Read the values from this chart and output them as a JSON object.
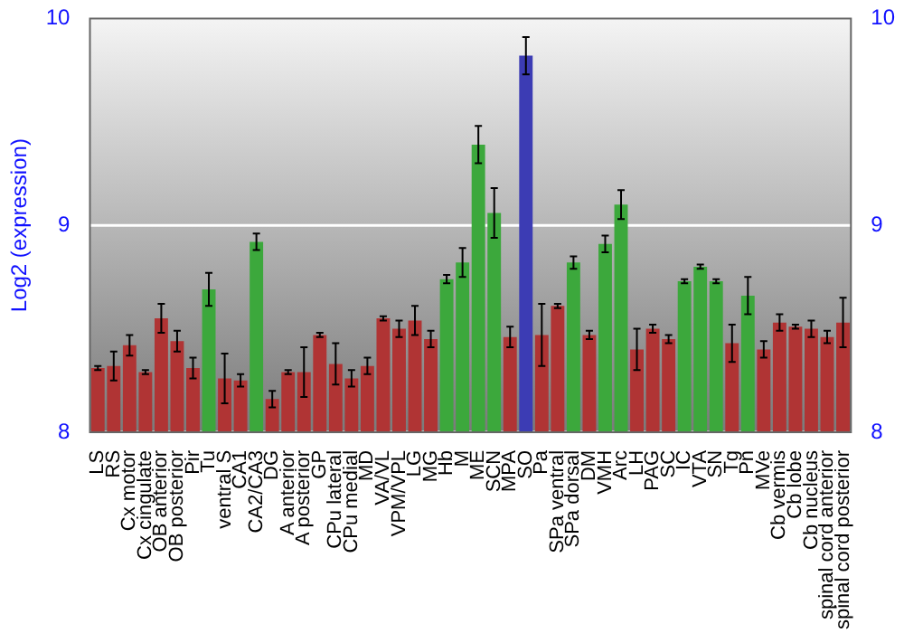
{
  "chart_data": {
    "type": "bar",
    "ylabel": "Log2 (expression)",
    "categories": [
      "LS",
      "RS",
      "Cx motor",
      "Cx cingulate",
      "OB anterior",
      "OB posterior",
      "Pir",
      "Tu",
      "ventral S",
      "CA1",
      "CA2/CA3",
      "DG",
      "A anterior",
      "A posterior",
      "GP",
      "CPu lateral",
      "CPu medial",
      "MD",
      "VA/VL",
      "VPM/VPL",
      "LG",
      "MG",
      "Hb",
      "M",
      "ME",
      "SCN",
      "MPA",
      "SO",
      "Pa",
      "SPa ventral",
      "SPa dorsal",
      "DM",
      "VMH",
      "Arc",
      "LH",
      "PAG",
      "SC",
      "IC",
      "VTA",
      "SN",
      "Tg",
      "Pn",
      "MVe",
      "Cb vermis",
      "Cb lobe",
      "Cb nucleus",
      "spinal cord anterior",
      "spinal cord posterior"
    ],
    "values": [
      8.31,
      8.32,
      8.42,
      8.29,
      8.55,
      8.44,
      8.31,
      8.69,
      8.26,
      8.25,
      8.92,
      8.16,
      8.29,
      8.29,
      8.47,
      8.33,
      8.26,
      8.32,
      8.55,
      8.5,
      8.54,
      8.45,
      8.74,
      8.82,
      9.39,
      9.06,
      8.46,
      9.82,
      8.47,
      8.61,
      8.82,
      8.47,
      8.91,
      9.1,
      8.4,
      8.5,
      8.45,
      8.73,
      8.8,
      8.73,
      8.43,
      8.66,
      8.4,
      8.53,
      8.51,
      8.5,
      8.46,
      8.53
    ],
    "errors": [
      0.01,
      0.07,
      0.05,
      0.01,
      0.07,
      0.05,
      0.05,
      0.08,
      0.12,
      0.03,
      0.04,
      0.04,
      0.01,
      0.12,
      0.01,
      0.1,
      0.04,
      0.04,
      0.01,
      0.04,
      0.07,
      0.04,
      0.02,
      0.07,
      0.09,
      0.12,
      0.05,
      0.09,
      0.15,
      0.01,
      0.03,
      0.02,
      0.04,
      0.07,
      0.1,
      0.02,
      0.02,
      0.01,
      0.01,
      0.01,
      0.09,
      0.09,
      0.04,
      0.04,
      0.01,
      0.04,
      0.03,
      0.12
    ],
    "colors": [
      "#b03434",
      "#b03434",
      "#b03434",
      "#b03434",
      "#b03434",
      "#b03434",
      "#b03434",
      "#3ca83c",
      "#b03434",
      "#b03434",
      "#3ca83c",
      "#b03434",
      "#b03434",
      "#b03434",
      "#b03434",
      "#b03434",
      "#b03434",
      "#b03434",
      "#b03434",
      "#b03434",
      "#b03434",
      "#b03434",
      "#3ca83c",
      "#3ca83c",
      "#3ca83c",
      "#3ca83c",
      "#b03434",
      "#3c3cb4",
      "#b03434",
      "#b03434",
      "#3ca83c",
      "#b03434",
      "#3ca83c",
      "#3ca83c",
      "#b03434",
      "#b03434",
      "#b03434",
      "#3ca83c",
      "#3ca83c",
      "#3ca83c",
      "#b03434",
      "#3ca83c",
      "#b03434",
      "#b03434",
      "#b03434",
      "#b03434",
      "#b03434",
      "#b03434"
    ],
    "ylim": [
      8,
      10
    ],
    "yticks": [
      8,
      9,
      10
    ],
    "y2lim": [
      8,
      10
    ],
    "y2ticks": [
      8,
      9,
      10
    ],
    "grid": "y",
    "legend": false
  }
}
